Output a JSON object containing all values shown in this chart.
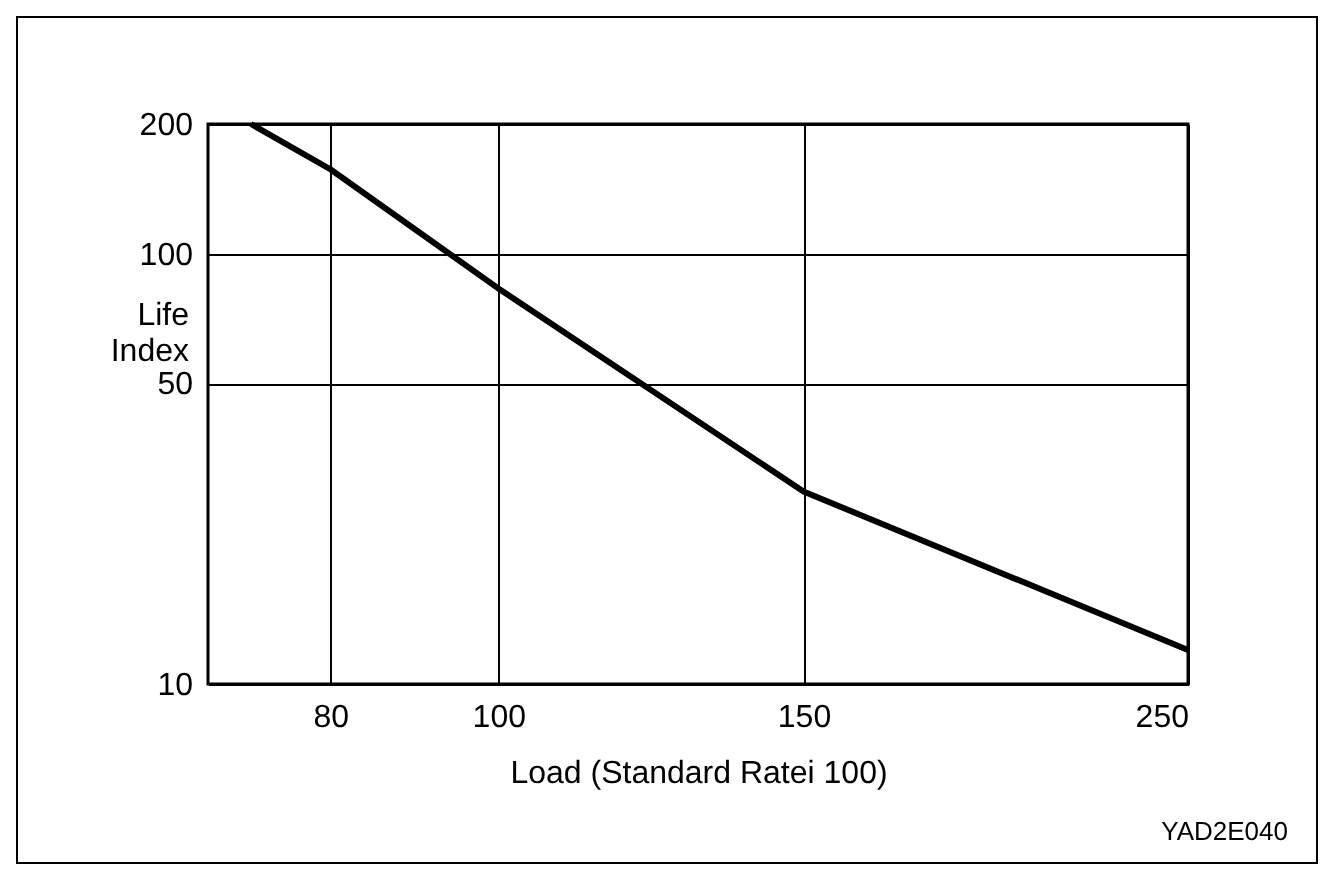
{
  "chart_data": {
    "type": "line",
    "xlabel": "Load (Standard Ratei 100)",
    "ylabel": "Life Index",
    "x": [
      72,
      80,
      100,
      150,
      250
    ],
    "series": [
      {
        "color": "#000000",
        "values": [
          200,
          157,
          83,
          28,
          12
        ]
      }
    ],
    "log": "xy",
    "xlim": [
      68,
      250
    ],
    "xticks": [
      80,
      100,
      150,
      250
    ],
    "ylim": [
      10,
      200
    ],
    "yticks": [
      10,
      50,
      100,
      200
    ],
    "grid": true,
    "marker": "none",
    "line_style": "solid",
    "annotations": [
      "YAD2E040"
    ]
  }
}
